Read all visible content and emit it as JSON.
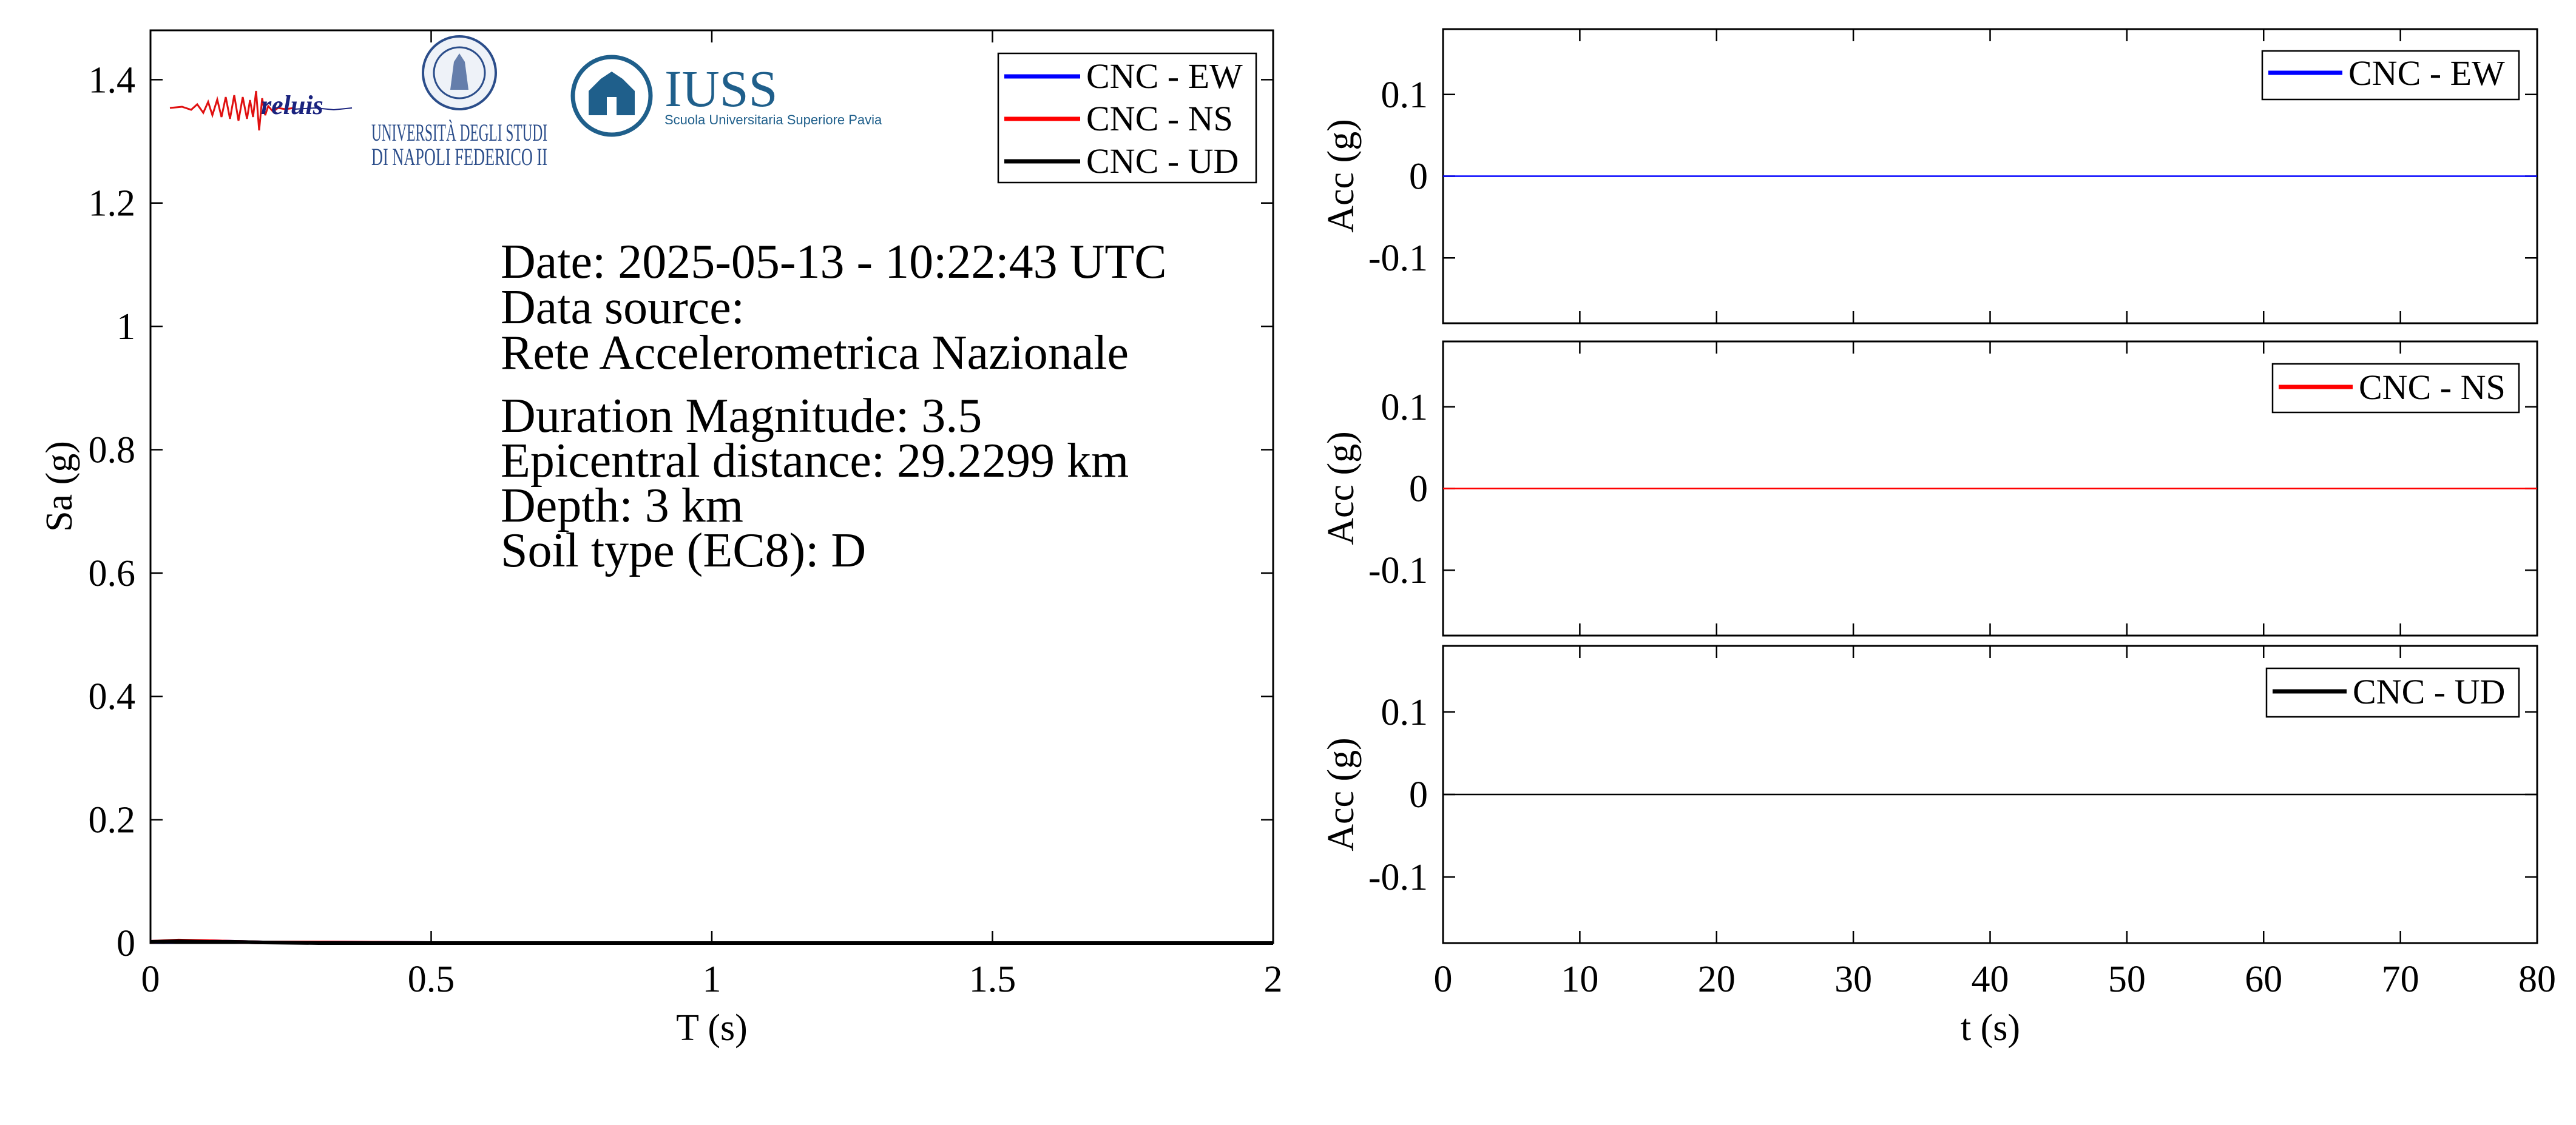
{
  "logos": {
    "reluis_text": "reluis",
    "unina_line1": "UNIVERSITÀ DEGLI STUDI",
    "unina_line2": "DI NAPOLI FEDERICO II",
    "iuss_title": "IUSS",
    "iuss_subtitle": "Scuola Universitaria Superiore Pavia"
  },
  "info": {
    "date": "Date: 2025-05-13 - 10:22:43 UTC",
    "source_label": "Data source:",
    "source_name": "Rete Accelerometrica Nazionale",
    "magnitude": "Duration Magnitude: 3.5",
    "distance": "Epicentral distance: 29.2299 km",
    "depth": "Depth: 3 km",
    "soil": "Soil type (EC8): D"
  },
  "colors": {
    "ew": "#0000ff",
    "ns": "#ff0000",
    "ud": "#000000"
  },
  "chart_data": [
    {
      "id": "spectrum",
      "type": "line",
      "xlabel": "T (s)",
      "ylabel": "Sa (g)",
      "xlim": [
        0,
        2
      ],
      "ylim": [
        0,
        1.48
      ],
      "xticks": [
        0,
        0.5,
        1,
        1.5,
        2
      ],
      "xticklabels": [
        "0",
        "0.5",
        "1",
        "1.5",
        "2"
      ],
      "yticks": [
        0,
        0.2,
        0.4,
        0.6,
        0.8,
        1,
        1.2,
        1.4
      ],
      "yticklabels": [
        "0",
        "0.2",
        "0.4",
        "0.6",
        "0.8",
        "1",
        "1.2",
        "1.4"
      ],
      "grid": false,
      "legend": "top-right",
      "x": [
        0,
        0.05,
        0.1,
        0.15,
        0.2,
        0.3,
        0.5,
        1,
        1.5,
        2
      ],
      "series": [
        {
          "name": "CNC - EW",
          "color": "#0000ff",
          "values": [
            0.002,
            0.003,
            0.003,
            0.002,
            0.001,
            0.001,
            0,
            0,
            0,
            0
          ]
        },
        {
          "name": "CNC - NS",
          "color": "#ff0000",
          "values": [
            0.002,
            0.004,
            0.003,
            0.002,
            0.001,
            0.001,
            0,
            0,
            0,
            0
          ]
        },
        {
          "name": "CNC - UD",
          "color": "#000000",
          "values": [
            0.002,
            0.003,
            0.002,
            0.002,
            0.001,
            0,
            0,
            0,
            0,
            0
          ]
        }
      ]
    },
    {
      "id": "acc-ew",
      "type": "line",
      "ylabel": "Acc (g)",
      "xlim": [
        0,
        80
      ],
      "ylim": [
        -0.18,
        0.18
      ],
      "yticks": [
        0.1,
        0,
        -0.1
      ],
      "yticklabels": [
        "0.1",
        "0",
        "-0.1"
      ],
      "xticks": [
        0,
        10,
        20,
        30,
        40,
        50,
        60,
        70,
        80
      ],
      "legend": "top-right",
      "x": [
        0,
        80
      ],
      "series": [
        {
          "name": "CNC - EW",
          "color": "#0000ff",
          "values": [
            0,
            0
          ]
        }
      ]
    },
    {
      "id": "acc-ns",
      "type": "line",
      "ylabel": "Acc (g)",
      "xlim": [
        0,
        80
      ],
      "ylim": [
        -0.18,
        0.18
      ],
      "yticks": [
        0.1,
        0,
        -0.1
      ],
      "yticklabels": [
        "0.1",
        "0",
        "-0.1"
      ],
      "xticks": [
        0,
        10,
        20,
        30,
        40,
        50,
        60,
        70,
        80
      ],
      "legend": "top-right",
      "x": [
        0,
        80
      ],
      "series": [
        {
          "name": "CNC - NS",
          "color": "#ff0000",
          "values": [
            0,
            0
          ]
        }
      ]
    },
    {
      "id": "acc-ud",
      "type": "line",
      "xlabel": "t (s)",
      "ylabel": "Acc (g)",
      "xlim": [
        0,
        80
      ],
      "ylim": [
        -0.18,
        0.18
      ],
      "yticks": [
        0.1,
        0,
        -0.1
      ],
      "yticklabels": [
        "0.1",
        "0",
        "-0.1"
      ],
      "xticks": [
        0,
        10,
        20,
        30,
        40,
        50,
        60,
        70,
        80
      ],
      "xticklabels": [
        "0",
        "10",
        "20",
        "30",
        "40",
        "50",
        "60",
        "70",
        "80"
      ],
      "legend": "top-right",
      "x": [
        0,
        80
      ],
      "series": [
        {
          "name": "CNC - UD",
          "color": "#000000",
          "values": [
            0,
            0
          ]
        }
      ]
    }
  ]
}
